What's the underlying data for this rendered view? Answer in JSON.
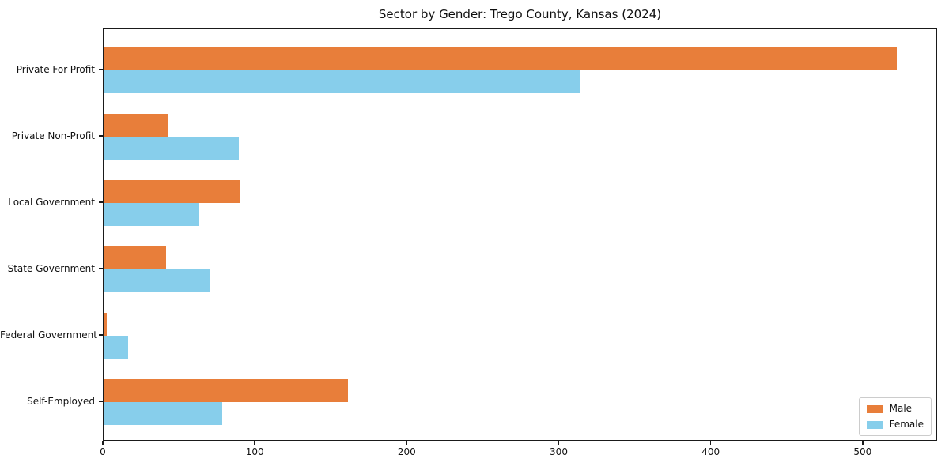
{
  "title": "Sector by Gender: Trego County, Kansas (2024)",
  "colors": {
    "male": "#e87e3a",
    "female": "#87ceeb",
    "axis": "#1a1a1a",
    "legend_border": "#cccccc",
    "background": "#ffffff"
  },
  "chart_data": {
    "type": "bar",
    "orientation": "horizontal",
    "title": "Sector by Gender: Trego County, Kansas (2024)",
    "xlabel": "",
    "ylabel": "",
    "categories": [
      "Private For-Profit",
      "Private Non-Profit",
      "Local Government",
      "State Government",
      "Federal Government",
      "Self-Employed"
    ],
    "series": [
      {
        "name": "Male",
        "color": "#e87e3a",
        "values": [
          523,
          43,
          90,
          41,
          2,
          161
        ]
      },
      {
        "name": "Female",
        "color": "#87ceeb",
        "values": [
          314,
          89,
          63,
          70,
          16,
          78
        ]
      }
    ],
    "xlim": [
      0,
      549
    ],
    "x_ticks": [
      0,
      100,
      200,
      300,
      400,
      500
    ],
    "legend_position": "lower right",
    "grid": false
  },
  "legend": {
    "items": [
      {
        "label": "Male"
      },
      {
        "label": "Female"
      }
    ]
  }
}
